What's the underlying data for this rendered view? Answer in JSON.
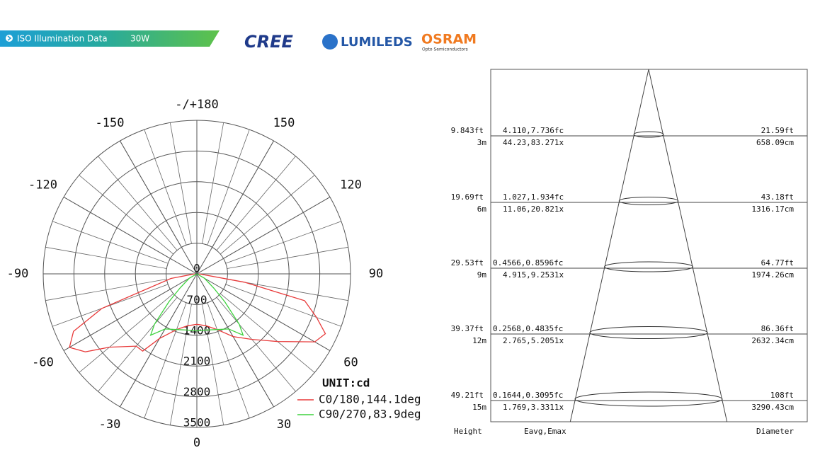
{
  "header": {
    "label": "ISO Illumination  Data",
    "power": "30W",
    "brands": [
      "CREE",
      "LUMILEDS",
      "OSRAM",
      "Opto Semiconductors"
    ]
  },
  "chart_data": {
    "type": "polar",
    "unit_label": "UNIT:cd",
    "rlim": [
      0,
      3500
    ],
    "rticks": [
      0,
      700,
      1400,
      2100,
      2800,
      3500
    ],
    "angle_ticks": [
      {
        "value": 180,
        "label": "-/+180"
      },
      -150,
      150,
      -120,
      120,
      -90,
      90,
      -60,
      60,
      -30,
      30,
      0
    ],
    "series": [
      {
        "name": "C0/180,144.1deg",
        "color": "#e83a3a",
        "angles": [
          -90,
          -80,
          -70,
          -65,
          -60,
          -55,
          -50,
          -40,
          -35,
          -30,
          -20,
          -10,
          0,
          10,
          20,
          30,
          40,
          50,
          60,
          65,
          70,
          76,
          80,
          90
        ],
        "values": [
          50,
          600,
          2300,
          3100,
          3350,
          3100,
          2600,
          2150,
          2150,
          1700,
          1350,
          1200,
          1150,
          1200,
          1350,
          1650,
          1950,
          2400,
          3100,
          3230,
          2900,
          2530,
          1100,
          50
        ]
      },
      {
        "name": "C90/270,83.9deg",
        "color": "#3ed23e",
        "angles": [
          -90,
          -60,
          -50,
          -45,
          -40,
          -37,
          -30,
          -20,
          -10,
          0,
          10,
          20,
          30,
          37,
          40,
          45,
          50,
          60,
          90
        ],
        "values": [
          0,
          200,
          500,
          900,
          1500,
          1750,
          1450,
          1350,
          1300,
          1300,
          1300,
          1350,
          1450,
          1750,
          1500,
          900,
          500,
          200,
          0
        ]
      }
    ]
  },
  "cone": {
    "rows": [
      {
        "height_ft": "9.843ft",
        "height_m": "3m",
        "illum_fc": "4.110,7.736fc",
        "illum_lx": "44.23,83.271x",
        "diameter_ft": "21.59ft",
        "diameter_cm": "658.09cm"
      },
      {
        "height_ft": "19.69ft",
        "height_m": "6m",
        "illum_fc": "1.027,1.934fc",
        "illum_lx": "11.06,20.821x",
        "diameter_ft": "43.18ft",
        "diameter_cm": "1316.17cm"
      },
      {
        "height_ft": "29.53ft",
        "height_m": "9m",
        "illum_fc": "0.4566,0.8596fc",
        "illum_lx": "4.915,9.2531x",
        "diameter_ft": "64.77ft",
        "diameter_cm": "1974.26cm"
      },
      {
        "height_ft": "39.37ft",
        "height_m": "12m",
        "illum_fc": "0.2568,0.4835fc",
        "illum_lx": "2.765,5.2051x",
        "diameter_ft": "86.36ft",
        "diameter_cm": "2632.34cm"
      },
      {
        "height_ft": "49.21ft",
        "height_m": "15m",
        "illum_fc": "0.1644,0.3095fc",
        "illum_lx": "1.769,3.3311x",
        "diameter_ft": "108ft",
        "diameter_cm": "3290.43cm"
      }
    ],
    "footer": [
      "Height",
      "Eavg,Emax",
      "Diameter"
    ]
  }
}
